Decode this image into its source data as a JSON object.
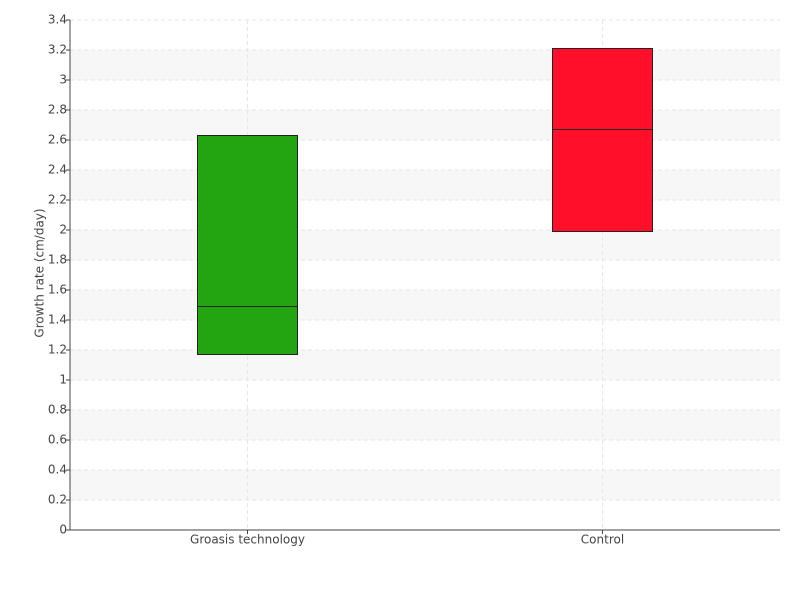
{
  "chart_data": {
    "type": "box",
    "y_label": "Growth rate (cm/day)",
    "categories": [
      "Groasis technology",
      "Control"
    ],
    "boxes": [
      {
        "q1": 1.17,
        "median": 1.49,
        "q3": 2.63,
        "color": "#22a511"
      },
      {
        "q1": 1.99,
        "median": 2.67,
        "q3": 3.21,
        "color": "#ff0f2a"
      }
    ],
    "ylim": [
      0,
      3.4
    ],
    "yticks": [
      0,
      0.2,
      0.4,
      0.6,
      0.8,
      1,
      1.2,
      1.4,
      1.6,
      1.8,
      2,
      2.2,
      2.4,
      2.6,
      2.8,
      3,
      3.2,
      3.4
    ],
    "grid": true
  }
}
